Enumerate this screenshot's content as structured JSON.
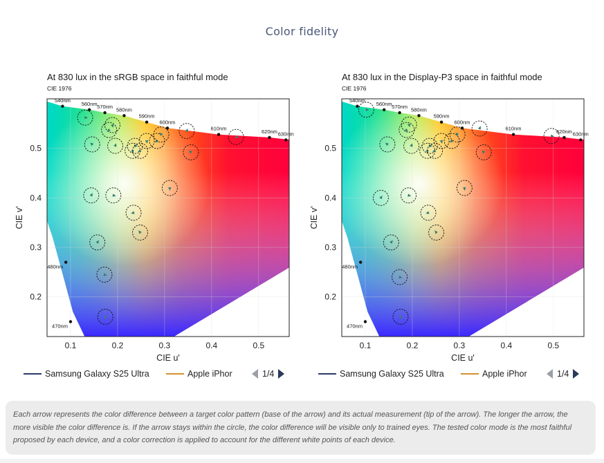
{
  "section_title": "Color fidelity",
  "caption": "Each arrow represents the color difference between a target color pattern (base of the arrow) and its actual measurement (tip of the arrow). The longer the arrow, the more visible the color difference is. If the arrow stays within the circle, the color difference will be visible only to trained eyes. The tested color mode is the most faithful proposed by each device, and a color correction is applied to account for the different white points of each device.",
  "colors": {
    "samsung": "#2b3a66",
    "apple": "#d4902a",
    "arrow": "#2f7f77",
    "title": "#4a5878"
  },
  "chart_data": [
    {
      "type": "scatter",
      "title": "At 830 lux in the sRGB space in faithful mode",
      "diagram_label": "CIE 1976",
      "xlabel": "CIE u'",
      "ylabel": "CIE v'",
      "xlim": [
        0.05,
        0.565
      ],
      "ylim": [
        0.12,
        0.6
      ],
      "xticks": [
        "0.1",
        "0.2",
        "0.3",
        "0.4",
        "0.5"
      ],
      "yticks": [
        "0.2",
        "0.3",
        "0.4",
        "0.5"
      ],
      "xtick_values": [
        0.1,
        0.2,
        0.3,
        0.4,
        0.5
      ],
      "ytick_values": [
        0.2,
        0.3,
        0.4,
        0.5
      ],
      "wavelengths": [
        {
          "label": "470nm",
          "u": 0.1,
          "v": 0.15
        },
        {
          "label": "480nm",
          "u": 0.09,
          "v": 0.27
        },
        {
          "label": "540nm",
          "u": 0.083,
          "v": 0.585
        },
        {
          "label": "560nm",
          "u": 0.14,
          "v": 0.578
        },
        {
          "label": "570nm",
          "u": 0.173,
          "v": 0.572
        },
        {
          "label": "580nm",
          "u": 0.214,
          "v": 0.566
        },
        {
          "label": "590nm",
          "u": 0.262,
          "v": 0.553
        },
        {
          "label": "600nm",
          "u": 0.306,
          "v": 0.541
        },
        {
          "label": "610nm",
          "u": 0.415,
          "v": 0.528
        },
        {
          "label": "620nm",
          "u": 0.523,
          "v": 0.522
        },
        {
          "label": "630nm",
          "u": 0.558,
          "v": 0.517
        }
      ],
      "legend": [
        {
          "name": "Samsung Galaxy S25 Ultra",
          "color": "#2b3a66"
        },
        {
          "name": "Apple iPhor",
          "color": "#d4902a"
        }
      ],
      "page": "1/4",
      "points": [
        [
          0.131,
          0.562
        ],
        [
          0.189,
          0.547
        ],
        [
          0.182,
          0.537
        ],
        [
          0.146,
          0.508
        ],
        [
          0.195,
          0.505
        ],
        [
          0.237,
          0.505
        ],
        [
          0.262,
          0.515
        ],
        [
          0.284,
          0.515
        ],
        [
          0.293,
          0.528
        ],
        [
          0.347,
          0.535
        ],
        [
          0.452,
          0.523
        ],
        [
          0.232,
          0.495
        ],
        [
          0.248,
          0.495
        ],
        [
          0.356,
          0.492
        ],
        [
          0.144,
          0.405
        ],
        [
          0.191,
          0.405
        ],
        [
          0.311,
          0.42
        ],
        [
          0.234,
          0.37
        ],
        [
          0.248,
          0.33
        ],
        [
          0.157,
          0.31
        ],
        [
          0.172,
          0.245
        ],
        [
          0.174,
          0.16
        ]
      ]
    },
    {
      "type": "scatter",
      "title": "At 830 lux in the Display-P3 space in faithful mode",
      "diagram_label": "CIE 1976",
      "xlabel": "CIE u'",
      "ylabel": "CIE v'",
      "xlim": [
        0.05,
        0.565
      ],
      "ylim": [
        0.12,
        0.6
      ],
      "xticks": [
        "0.1",
        "0.2",
        "0.3",
        "0.4",
        "0.5"
      ],
      "yticks": [
        "0.2",
        "0.3",
        "0.4",
        "0.5"
      ],
      "xtick_values": [
        0.1,
        0.2,
        0.3,
        0.4,
        0.5
      ],
      "ytick_values": [
        0.2,
        0.3,
        0.4,
        0.5
      ],
      "wavelengths": [
        {
          "label": "470nm",
          "u": 0.1,
          "v": 0.15
        },
        {
          "label": "480nm",
          "u": 0.09,
          "v": 0.27
        },
        {
          "label": "540nm",
          "u": 0.083,
          "v": 0.585
        },
        {
          "label": "560nm",
          "u": 0.14,
          "v": 0.578
        },
        {
          "label": "570nm",
          "u": 0.173,
          "v": 0.572
        },
        {
          "label": "580nm",
          "u": 0.214,
          "v": 0.566
        },
        {
          "label": "590nm",
          "u": 0.262,
          "v": 0.553
        },
        {
          "label": "600nm",
          "u": 0.306,
          "v": 0.541
        },
        {
          "label": "610nm",
          "u": 0.415,
          "v": 0.528
        },
        {
          "label": "620nm",
          "u": 0.523,
          "v": 0.522
        },
        {
          "label": "630nm",
          "u": 0.558,
          "v": 0.517
        }
      ],
      "legend": [
        {
          "name": "Samsung Galaxy S25 Ultra",
          "color": "#2b3a66"
        },
        {
          "name": "Apple iPhor",
          "color": "#d4902a"
        }
      ],
      "page": "1/4",
      "points": [
        [
          0.102,
          0.578
        ],
        [
          0.193,
          0.548
        ],
        [
          0.188,
          0.537
        ],
        [
          0.147,
          0.508
        ],
        [
          0.198,
          0.505
        ],
        [
          0.237,
          0.505
        ],
        [
          0.262,
          0.515
        ],
        [
          0.284,
          0.515
        ],
        [
          0.296,
          0.528
        ],
        [
          0.343,
          0.54
        ],
        [
          0.496,
          0.525
        ],
        [
          0.232,
          0.495
        ],
        [
          0.248,
          0.495
        ],
        [
          0.352,
          0.492
        ],
        [
          0.133,
          0.4
        ],
        [
          0.192,
          0.405
        ],
        [
          0.311,
          0.42
        ],
        [
          0.234,
          0.37
        ],
        [
          0.251,
          0.33
        ],
        [
          0.155,
          0.31
        ],
        [
          0.173,
          0.24
        ],
        [
          0.175,
          0.16
        ]
      ]
    }
  ]
}
